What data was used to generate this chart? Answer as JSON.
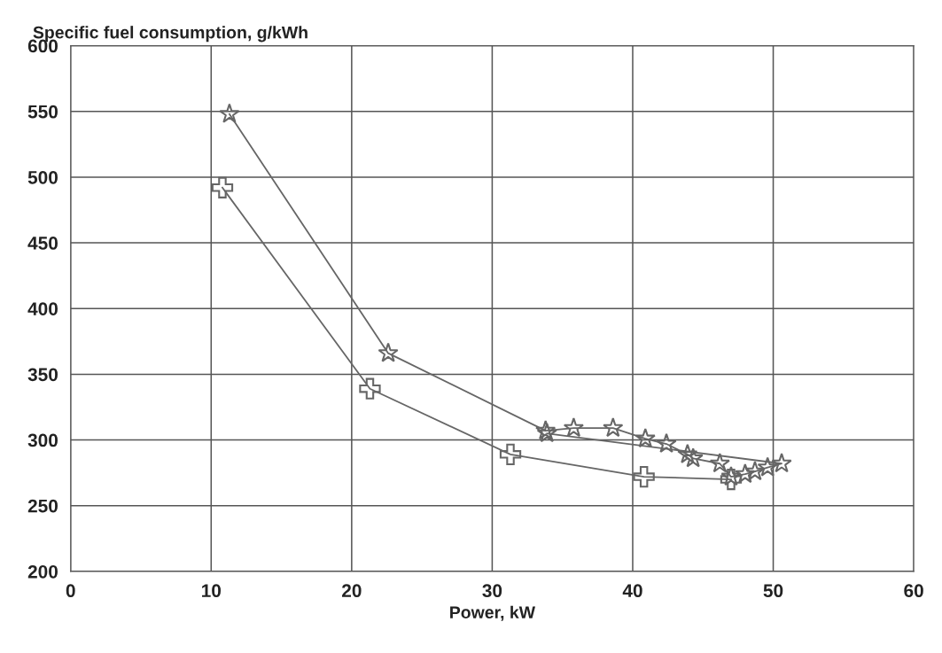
{
  "chart_data": {
    "type": "line",
    "title": "Specific fuel consumption, g/kWh",
    "xlabel": "Power, kW",
    "xlim": [
      0,
      60
    ],
    "xticks": [
      0,
      10,
      20,
      30,
      40,
      50,
      60
    ],
    "ylim": [
      200,
      600
    ],
    "yticks": [
      200,
      250,
      300,
      350,
      400,
      450,
      500,
      550,
      600
    ],
    "grid": true,
    "line_style": "solid",
    "series": [
      {
        "color": "#666666",
        "marker": "star",
        "x": [
          11.3,
          22.6,
          33.8,
          35.8,
          38.6,
          40.9,
          42.4,
          43.9,
          44.3,
          46.2,
          47.0,
          48.0,
          48.7,
          49.6,
          50.6,
          33.9
        ],
        "values": [
          548,
          366,
          307,
          309,
          309,
          301,
          297,
          289,
          286,
          282,
          272,
          274,
          276,
          279,
          282,
          305
        ]
      },
      {
        "color": "#666666",
        "marker": "cross",
        "x": [
          10.8,
          21.3,
          31.3,
          40.8,
          47.0
        ],
        "values": [
          492,
          339,
          289,
          272,
          270
        ]
      }
    ]
  }
}
